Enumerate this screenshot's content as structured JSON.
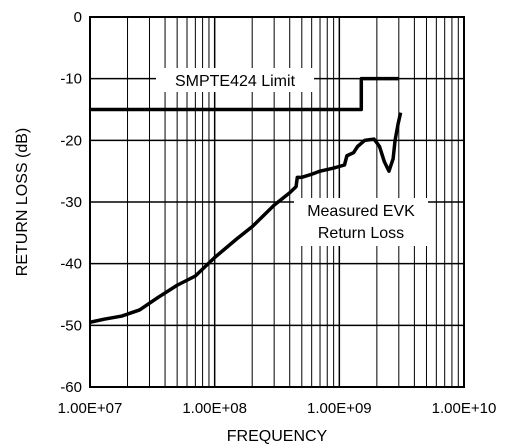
{
  "chart_data": {
    "type": "line",
    "x_scale": "log",
    "y_scale": "linear",
    "xlabel": "FREQUENCY",
    "ylabel": "RETURN LOSS (dB)",
    "xlim": [
      "1.00E+07",
      "1.00E+10"
    ],
    "ylim": [
      -60,
      0
    ],
    "grid": true,
    "x_tick_labels": [
      "1.00E+07",
      "1.00E+08",
      "1.00E+09",
      "1.00E+10"
    ],
    "y_tick_labels": [
      "0",
      "-10",
      "-20",
      "-30",
      "-40",
      "-50",
      "-60"
    ],
    "y_ticks": [
      0,
      -10,
      -20,
      -30,
      -40,
      -50,
      -60
    ],
    "series": [
      {
        "name": "SMPTE424 Limit",
        "label_position": "upper-right",
        "color": "#000000",
        "points": [
          [
            10000000.0,
            -15
          ],
          [
            1500000000.0,
            -15
          ],
          [
            1500000000.0,
            -10
          ],
          [
            3000000000.0,
            -10
          ]
        ]
      },
      {
        "name": "Measured EVK Return Loss",
        "label_position": "right-middle",
        "color": "#000000",
        "points": [
          [
            10000000.0,
            -49.5
          ],
          [
            13000000.0,
            -49.0
          ],
          [
            18000000.0,
            -48.5
          ],
          [
            25000000.0,
            -47.5
          ],
          [
            35000000.0,
            -45.5
          ],
          [
            50000000.0,
            -43.5
          ],
          [
            70000000.0,
            -42.0
          ],
          [
            100000000.0,
            -39.0
          ],
          [
            150000000.0,
            -36.0
          ],
          [
            200000000.0,
            -34.0
          ],
          [
            300000000.0,
            -30.5
          ],
          [
            400000000.0,
            -28.5
          ],
          [
            450000000.0,
            -27.5
          ],
          [
            460000000.0,
            -26.0
          ],
          [
            500000000.0,
            -26.0
          ],
          [
            600000000.0,
            -25.5
          ],
          [
            700000000.0,
            -25.0
          ],
          [
            900000000.0,
            -24.5
          ],
          [
            1100000000.0,
            -24.0
          ],
          [
            1150000000.0,
            -22.5
          ],
          [
            1300000000.0,
            -22.0
          ],
          [
            1400000000.0,
            -21.0
          ],
          [
            1600000000.0,
            -20.0
          ],
          [
            1900000000.0,
            -19.8
          ],
          [
            2100000000.0,
            -21.0
          ],
          [
            2300000000.0,
            -23.5
          ],
          [
            2500000000.0,
            -25.0
          ],
          [
            2700000000.0,
            -23.0
          ],
          [
            2800000000.0,
            -20.0
          ],
          [
            2950000000.0,
            -17.5
          ],
          [
            3100000000.0,
            -15.5
          ]
        ]
      }
    ]
  }
}
